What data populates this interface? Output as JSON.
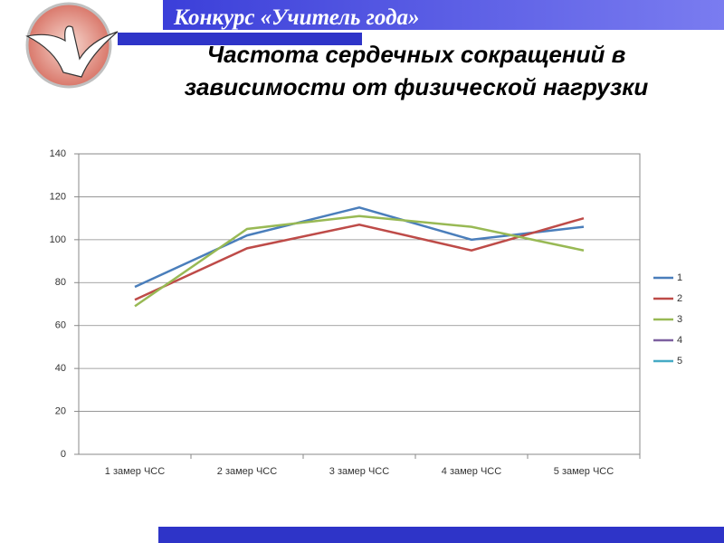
{
  "header": {
    "title": "Конкурс «Учитель года»"
  },
  "chart_data": {
    "type": "line",
    "title": "Частота сердечных сокращений в зависимости от физической нагрузки",
    "categories": [
      "1 замер ЧСС",
      "2 замер ЧСС",
      "3 замер ЧСС",
      "4 замер ЧСС",
      "5 замер ЧСС"
    ],
    "series": [
      {
        "name": "1",
        "color": "#4a7ebb",
        "values": [
          78,
          102,
          115,
          100,
          106
        ]
      },
      {
        "name": "2",
        "color": "#be4b48",
        "values": [
          72,
          96,
          107,
          95,
          110
        ]
      },
      {
        "name": "3",
        "color": "#98b954",
        "values": [
          69,
          105,
          111,
          106,
          95
        ]
      },
      {
        "name": "4",
        "color": "#7d60a0",
        "values": [
          null,
          null,
          null,
          null,
          null
        ]
      },
      {
        "name": "5",
        "color": "#46aac5",
        "values": [
          null,
          null,
          null,
          null,
          null
        ]
      }
    ],
    "ylim": [
      0,
      140
    ],
    "yticks": [
      0,
      20,
      40,
      60,
      80,
      100,
      120,
      140
    ],
    "grid": true,
    "legend": "right"
  }
}
